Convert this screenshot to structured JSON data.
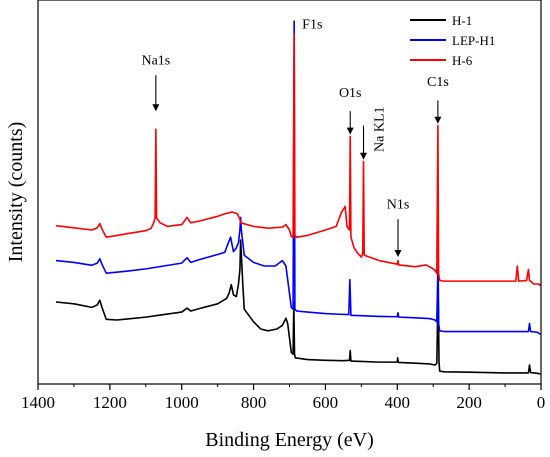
{
  "chart_data": {
    "type": "line",
    "xlabel": "Binding Energy (eV)",
    "ylabel": "Intensity (counts)",
    "xlim": [
      1400,
      0
    ],
    "x_reversed": true,
    "ylim": [
      0,
      100
    ],
    "y_ticks_shown": false,
    "x_ticks": [
      1400,
      1200,
      1000,
      800,
      600,
      400,
      200,
      0
    ],
    "x_tick_labels": [
      "1400",
      "1200",
      "1000",
      "800",
      "600",
      "400",
      "200",
      "0"
    ],
    "grid": false,
    "legend_position": "top-right",
    "series": [
      {
        "name": "H-1",
        "color": "#000000",
        "points": [
          [
            1350,
            20.0
          ],
          [
            1300,
            19.5
          ],
          [
            1250,
            18.5
          ],
          [
            1235,
            19.2
          ],
          [
            1228,
            20.5
          ],
          [
            1222,
            18.5
          ],
          [
            1210,
            15.2
          ],
          [
            1180,
            15.0
          ],
          [
            1150,
            15.3
          ],
          [
            1100,
            15.8
          ],
          [
            1050,
            16.5
          ],
          [
            1000,
            17.2
          ],
          [
            985,
            18.3
          ],
          [
            975,
            17.5
          ],
          [
            950,
            18.2
          ],
          [
            900,
            19.5
          ],
          [
            875,
            21.0
          ],
          [
            868,
            22.5
          ],
          [
            862,
            24.8
          ],
          [
            856,
            22.0
          ],
          [
            848,
            21.5
          ],
          [
            842,
            25.0
          ],
          [
            838,
            29.0
          ],
          [
            836,
            37.2
          ],
          [
            834,
            33.0
          ],
          [
            830,
            25.0
          ],
          [
            826,
            18.0
          ],
          [
            800,
            14.5
          ],
          [
            780,
            12.5
          ],
          [
            760,
            12.0
          ],
          [
            735,
            12.5
          ],
          [
            720,
            13.5
          ],
          [
            710,
            15.5
          ],
          [
            705,
            14.0
          ],
          [
            695,
            6.0
          ],
          [
            690,
            5.5
          ],
          [
            688,
            20.0
          ],
          [
            686,
            5.5
          ],
          [
            684,
            4.5
          ],
          [
            650,
            4.0
          ],
          [
            600,
            3.8
          ],
          [
            550,
            3.7
          ],
          [
            533,
            3.8
          ],
          [
            531,
            6.5
          ],
          [
            529,
            3.6
          ],
          [
            500,
            3.5
          ],
          [
            450,
            3.3
          ],
          [
            400,
            3.3
          ],
          [
            399,
            4.5
          ],
          [
            397,
            3.2
          ],
          [
            350,
            3.0
          ],
          [
            310,
            2.8
          ],
          [
            295,
            2.5
          ],
          [
            290,
            3.0
          ],
          [
            286,
            27.0
          ],
          [
            284,
            3.5
          ],
          [
            282,
            0.8
          ],
          [
            270,
            0.6
          ],
          [
            200,
            0.5
          ],
          [
            100,
            0.3
          ],
          [
            35,
            0.3
          ],
          [
            32,
            2.5
          ],
          [
            29,
            0.4
          ],
          [
            10,
            0.2
          ],
          [
            2,
            0.0
          ]
        ]
      },
      {
        "name": "LEP-H1",
        "color": "#0000ff",
        "points": [
          [
            1350,
            31.5
          ],
          [
            1300,
            31.0
          ],
          [
            1250,
            30.2
          ],
          [
            1235,
            30.8
          ],
          [
            1228,
            32.0
          ],
          [
            1222,
            30.5
          ],
          [
            1210,
            28.0
          ],
          [
            1150,
            28.6
          ],
          [
            1100,
            29.2
          ],
          [
            1050,
            30.0
          ],
          [
            1000,
            30.8
          ],
          [
            985,
            32.3
          ],
          [
            975,
            31.0
          ],
          [
            950,
            31.8
          ],
          [
            900,
            33.2
          ],
          [
            880,
            33.8
          ],
          [
            872,
            36.0
          ],
          [
            864,
            38.0
          ],
          [
            856,
            34.0
          ],
          [
            848,
            35.0
          ],
          [
            842,
            36.5
          ],
          [
            838,
            40.0
          ],
          [
            836,
            43.5
          ],
          [
            834,
            40.0
          ],
          [
            826,
            33.0
          ],
          [
            800,
            31.0
          ],
          [
            770,
            30.0
          ],
          [
            740,
            30.0
          ],
          [
            720,
            31.5
          ],
          [
            710,
            30.0
          ],
          [
            695,
            18.5
          ],
          [
            690,
            18.0
          ],
          [
            687,
            98.0
          ],
          [
            685,
            18.0
          ],
          [
            680,
            17.5
          ],
          [
            650,
            17.2
          ],
          [
            600,
            16.8
          ],
          [
            560,
            16.6
          ],
          [
            535,
            16.5
          ],
          [
            532,
            26.2
          ],
          [
            529,
            16.3
          ],
          [
            500,
            16.2
          ],
          [
            450,
            16.0
          ],
          [
            400,
            15.9
          ],
          [
            398,
            17.0
          ],
          [
            396,
            15.8
          ],
          [
            350,
            15.6
          ],
          [
            310,
            15.4
          ],
          [
            295,
            15.0
          ],
          [
            290,
            14.5
          ],
          [
            287,
            29.0
          ],
          [
            285,
            14.0
          ],
          [
            282,
            12.0
          ],
          [
            270,
            11.8
          ],
          [
            200,
            11.8
          ],
          [
            100,
            11.8
          ],
          [
            35,
            11.8
          ],
          [
            32,
            14.0
          ],
          [
            29,
            11.8
          ],
          [
            10,
            11.6
          ],
          [
            2,
            11.0
          ]
        ]
      },
      {
        "name": "H-6",
        "color": "#ff0000",
        "points": [
          [
            1350,
            41.2
          ],
          [
            1300,
            40.6
          ],
          [
            1250,
            40.0
          ],
          [
            1235,
            40.6
          ],
          [
            1228,
            41.8
          ],
          [
            1222,
            40.3
          ],
          [
            1210,
            38.0
          ],
          [
            1180,
            38.5
          ],
          [
            1150,
            39.0
          ],
          [
            1100,
            39.8
          ],
          [
            1085,
            40.5
          ],
          [
            1078,
            42.0
          ],
          [
            1074,
            43.3
          ],
          [
            1072,
            68.0
          ],
          [
            1070,
            43.3
          ],
          [
            1060,
            42.0
          ],
          [
            1040,
            41.0
          ],
          [
            1000,
            41.5
          ],
          [
            985,
            43.5
          ],
          [
            975,
            42.0
          ],
          [
            950,
            42.5
          ],
          [
            900,
            43.8
          ],
          [
            880,
            44.5
          ],
          [
            860,
            45.0
          ],
          [
            845,
            44.5
          ],
          [
            838,
            43.0
          ],
          [
            836,
            42.0
          ],
          [
            800,
            41.0
          ],
          [
            760,
            40.5
          ],
          [
            720,
            40.8
          ],
          [
            710,
            41.5
          ],
          [
            700,
            40.0
          ],
          [
            695,
            38.2
          ],
          [
            690,
            38.0
          ],
          [
            687,
            94.5
          ],
          [
            685,
            38.5
          ],
          [
            680,
            38.0
          ],
          [
            650,
            38.5
          ],
          [
            600,
            40.0
          ],
          [
            570,
            41.0
          ],
          [
            555,
            45.0
          ],
          [
            545,
            46.5
          ],
          [
            540,
            41.0
          ],
          [
            533,
            40.0
          ],
          [
            531,
            66.0
          ],
          [
            529,
            38.0
          ],
          [
            520,
            35.0
          ],
          [
            510,
            33.5
          ],
          [
            500,
            32.5
          ],
          [
            496,
            33.5
          ],
          [
            494,
            59.0
          ],
          [
            492,
            33.0
          ],
          [
            450,
            31.5
          ],
          [
            400,
            30.5
          ],
          [
            398,
            31.5
          ],
          [
            396,
            30.3
          ],
          [
            350,
            29.8
          ],
          [
            320,
            30.3
          ],
          [
            305,
            29.5
          ],
          [
            295,
            28.8
          ],
          [
            290,
            28.0
          ],
          [
            287,
            69.0
          ],
          [
            285,
            28.0
          ],
          [
            282,
            26.0
          ],
          [
            270,
            25.8
          ],
          [
            200,
            25.8
          ],
          [
            100,
            25.8
          ],
          [
            70,
            25.8
          ],
          [
            66,
            30.0
          ],
          [
            62,
            25.8
          ],
          [
            40,
            26.0
          ],
          [
            35,
            29.0
          ],
          [
            32,
            26.0
          ],
          [
            20,
            25.0
          ],
          [
            5,
            25.0
          ],
          [
            2,
            24.5
          ]
        ]
      }
    ],
    "annotations": [
      {
        "label": "Na1s",
        "x": 1072,
        "y_text": 86,
        "arrow_from": 83,
        "arrow_to": 73,
        "rotate": false
      },
      {
        "label": "F1s",
        "x": 687,
        "y_text": 96,
        "arrow_from": null,
        "arrow_to": null,
        "rotate": false,
        "offset_x": 8
      },
      {
        "label": "O1s",
        "x": 531,
        "y_text": 77,
        "arrow_from": 73,
        "arrow_to": 66.5,
        "rotate": false
      },
      {
        "label": "Na KL1",
        "x": 494,
        "y_text": 68,
        "arrow_from": 69,
        "arrow_to": 59.5,
        "rotate": true
      },
      {
        "label": "C1s",
        "x": 287,
        "y_text": 80,
        "arrow_from": 76,
        "arrow_to": 69.5,
        "rotate": false
      },
      {
        "label": "N1s",
        "x": 398,
        "y_text": 46,
        "arrow_from": 43,
        "arrow_to": 32.5,
        "rotate": false
      }
    ]
  }
}
